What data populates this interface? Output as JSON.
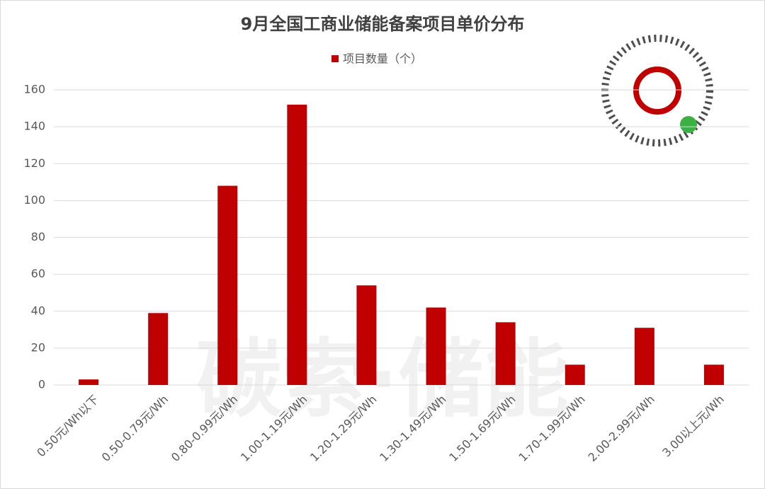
{
  "chart_data": {
    "type": "bar",
    "title": "9月全国工商业储能备案项目单价分布",
    "watermark": "碳索·储能",
    "categories": [
      "0.50元/Wh以下",
      "0.50-0.79元/Wh",
      "0.80-0.99元/Wh",
      "1.00-1.19元/Wh",
      "1.20-1.29元/Wh",
      "1.30-1.49元/Wh",
      "1.50-1.69元/Wh",
      "1.70-1.99元/Wh",
      "2.00-2.99元/Wh",
      "3.00以上元/Wh"
    ],
    "series": [
      {
        "name": "项目数量（个）",
        "color": "#c00000",
        "values": [
          3,
          39,
          108,
          152,
          54,
          42,
          34,
          11,
          31,
          11
        ]
      }
    ],
    "ylim": [
      0,
      160
    ],
    "yticks": [
      0,
      20,
      40,
      60,
      80,
      100,
      120,
      140,
      160
    ],
    "grid": true,
    "legend": "top"
  }
}
